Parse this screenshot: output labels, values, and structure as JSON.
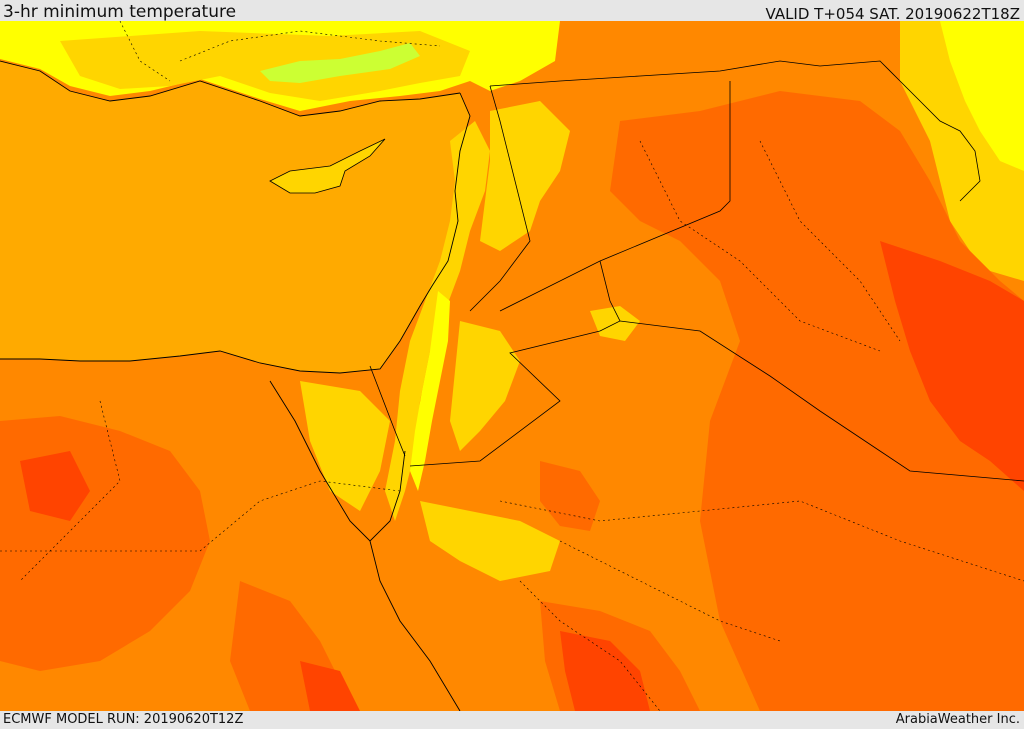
{
  "header": {
    "title": "3-hr minimum temperature",
    "valid_time": "VALID T+054 SAT. 20190622T18Z"
  },
  "footer": {
    "model_run": "ECMWF MODEL RUN: 20190620T12Z",
    "credit": "ArabiaWeather Inc."
  },
  "colors": {
    "warm_orange": "#ffaa00",
    "orange": "#ff8800",
    "deep_orange": "#ff6a00",
    "red_orange": "#ff4400",
    "yellow": "#ffff00",
    "gold": "#ffd500",
    "light_yellow_green": "#ccff33",
    "border_line": "#000000"
  }
}
